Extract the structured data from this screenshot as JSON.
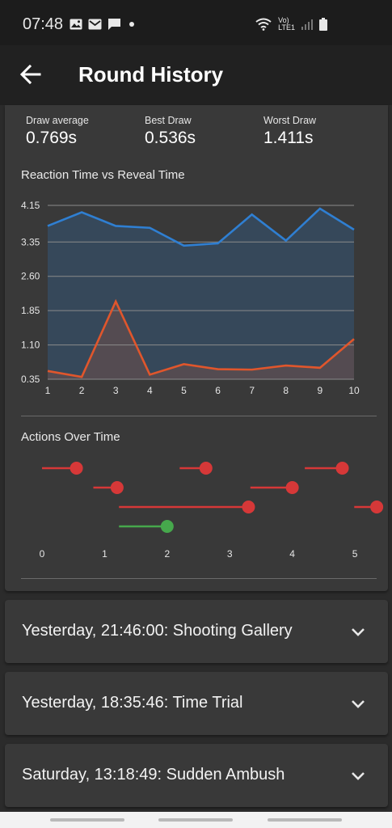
{
  "status": {
    "time": "07:48",
    "network_label": "LTE1",
    "volte_label": "Vo)",
    "icons": [
      "image-icon",
      "mail-icon",
      "chat-icon",
      "dot-icon",
      "wifi-icon",
      "signal-icon",
      "battery-icon"
    ]
  },
  "app_bar": {
    "title": "Round History",
    "back_icon": "arrow-left-icon"
  },
  "stats": {
    "draw_average_label": "Draw average",
    "draw_average_value": "0.769s",
    "best_draw_label": "Best Draw",
    "best_draw_value": "0.536s",
    "worst_draw_label": "Worst Draw",
    "worst_draw_value": "1.411s"
  },
  "colors": {
    "blue": "#2f7fd2",
    "orange": "#e0562c",
    "red": "#d63838",
    "green": "#46a84c"
  },
  "chart_data": [
    {
      "type": "line",
      "title": "Reaction Time vs Reveal Time",
      "x": [
        1,
        2,
        3,
        4,
        5,
        6,
        7,
        8,
        9,
        10
      ],
      "x_tick_labels": [
        "1",
        "2",
        "3",
        "4",
        "5",
        "6",
        "7",
        "8",
        "9",
        "10"
      ],
      "y_tick_labels": [
        "4.15",
        "3.35",
        "2.60",
        "1.85",
        "1.10",
        "0.35"
      ],
      "y_ticks": [
        4.15,
        3.35,
        2.6,
        1.85,
        1.1,
        0.35
      ],
      "ylim": [
        0.35,
        4.15
      ],
      "xlim": [
        1,
        10
      ],
      "grid": true,
      "series": [
        {
          "color": "#2f7fd2",
          "values": [
            3.7,
            4.0,
            3.7,
            3.66,
            3.27,
            3.32,
            3.95,
            3.38,
            4.08,
            3.62
          ]
        },
        {
          "color": "#e0562c",
          "values": [
            0.53,
            0.4,
            2.05,
            0.45,
            0.68,
            0.57,
            0.56,
            0.65,
            0.6,
            1.23
          ]
        }
      ]
    },
    {
      "type": "timeline",
      "title": "Actions Over Time",
      "x_tick_labels": [
        "0",
        "1",
        "2",
        "3",
        "4",
        "5"
      ],
      "xlim": [
        0,
        5.4
      ],
      "rows": 4,
      "segments": [
        {
          "row": 0,
          "start": 0.0,
          "end": 0.55,
          "color": "#d63838"
        },
        {
          "row": 0,
          "start": 2.2,
          "end": 2.62,
          "color": "#d63838"
        },
        {
          "row": 0,
          "start": 4.2,
          "end": 4.8,
          "color": "#d63838"
        },
        {
          "row": 1,
          "start": 0.82,
          "end": 1.2,
          "color": "#d63838"
        },
        {
          "row": 1,
          "start": 3.33,
          "end": 4.0,
          "color": "#d63838"
        },
        {
          "row": 2,
          "start": 1.23,
          "end": 3.3,
          "color": "#d63838"
        },
        {
          "row": 2,
          "start": 4.99,
          "end": 5.35,
          "color": "#d63838"
        },
        {
          "row": 3,
          "start": 1.23,
          "end": 2.0,
          "color": "#46a84c"
        }
      ]
    }
  ],
  "rounds": [
    {
      "label": "Yesterday, 21:46:00: Shooting Gallery"
    },
    {
      "label": "Yesterday, 18:35:46: Time Trial"
    },
    {
      "label": "Saturday, 13:18:49: Sudden Ambush"
    }
  ]
}
